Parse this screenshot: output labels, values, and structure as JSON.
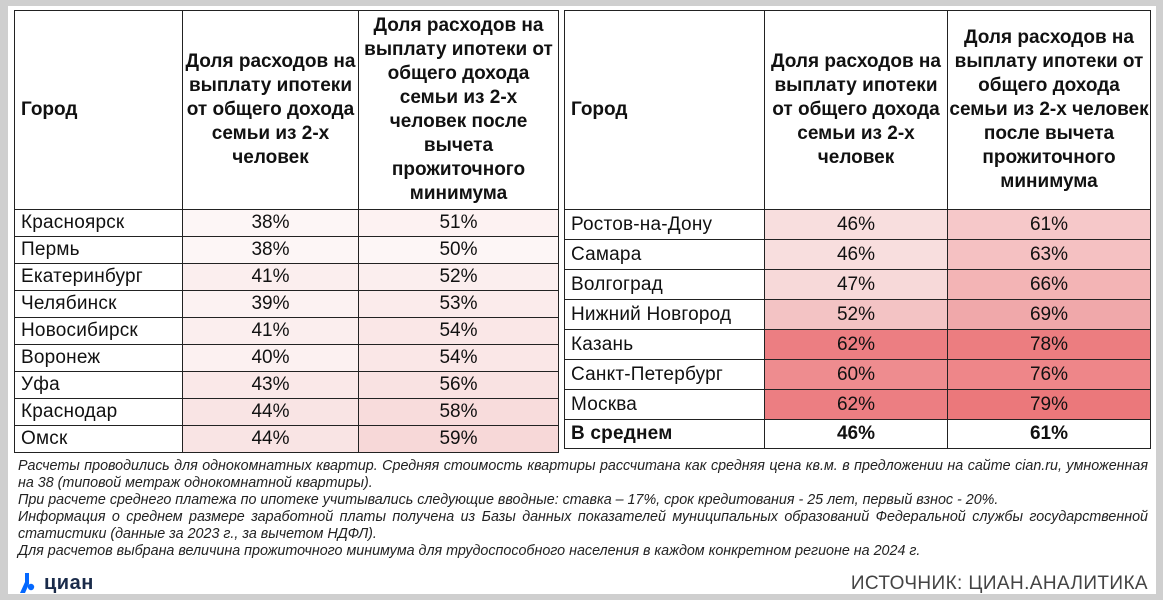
{
  "headers": {
    "city": "Город",
    "share": "Доля расходов на выплату ипотеки от общего дохода семьи из 2-х человек",
    "share_after": "Доля расходов на выплату ипотеки от общего дохода семьи из 2-х человек после вычета прожиточного минимума"
  },
  "left_rows": [
    {
      "city": "Красноярск",
      "share": "38%",
      "share_after": "51%",
      "share_bg": "#fdf6f6",
      "after_bg": "#fdf2f2"
    },
    {
      "city": "Пермь",
      "share": "38%",
      "share_after": "50%",
      "share_bg": "#fdf6f6",
      "after_bg": "#fdf6f6"
    },
    {
      "city": "Екатеринбург",
      "share": "41%",
      "share_after": "52%",
      "share_bg": "#fbeeee",
      "after_bg": "#fbeeee"
    },
    {
      "city": "Челябинск",
      "share": "39%",
      "share_after": "53%",
      "share_bg": "#fcf2f2",
      "after_bg": "#fbebeb"
    },
    {
      "city": "Новосибирск",
      "share": "41%",
      "share_after": "54%",
      "share_bg": "#fbeeee",
      "after_bg": "#fae7e7"
    },
    {
      "city": "Воронеж",
      "share": "40%",
      "share_after": "54%",
      "share_bg": "#fcf1f1",
      "after_bg": "#fae7e7"
    },
    {
      "city": "Уфа",
      "share": "43%",
      "share_after": "56%",
      "share_bg": "#fae8e8",
      "after_bg": "#f9e2e2"
    },
    {
      "city": "Краснодар",
      "share": "44%",
      "share_after": "58%",
      "share_bg": "#f9e4e4",
      "after_bg": "#f8dcdc"
    },
    {
      "city": "Омск",
      "share": "44%",
      "share_after": "59%",
      "share_bg": "#f9e4e4",
      "after_bg": "#f7d8d8"
    }
  ],
  "right_rows": [
    {
      "city": "Ростов-на-Дону",
      "share": "46%",
      "share_after": "61%",
      "share_bg": "#f8dede",
      "after_bg": "#f6c8c9"
    },
    {
      "city": "Самара",
      "share": "46%",
      "share_after": "63%",
      "share_bg": "#f8dede",
      "after_bg": "#f5c1c2"
    },
    {
      "city": "Волгоград",
      "share": "47%",
      "share_after": "66%",
      "share_bg": "#f7d9d9",
      "after_bg": "#f3b4b5"
    },
    {
      "city": "Нижний Новгород",
      "share": "52%",
      "share_after": "69%",
      "share_bg": "#f3c3c4",
      "after_bg": "#f0a8aa"
    },
    {
      "city": "Казань",
      "share": "62%",
      "share_after": "78%",
      "share_bg": "#ec7e82",
      "after_bg": "#ec7d80"
    },
    {
      "city": "Санкт-Петербург",
      "share": "60%",
      "share_after": "76%",
      "share_bg": "#ee8c8f",
      "after_bg": "#ee8689"
    },
    {
      "city": "Москва",
      "share": "62%",
      "share_after": "79%",
      "share_bg": "#ec7e82",
      "after_bg": "#eb787b"
    }
  ],
  "average": {
    "label": "В среднем",
    "share": "46%",
    "share_after": "61%"
  },
  "notes": {
    "line1": "Расчеты проводились для однокомнатных квартир. Средняя стоимость квартиры рассчитана как средняя цена кв.м. в предложении на сайте cian.ru, умноженная на 38 (типовой метраж однокомнатной квартиры).",
    "line2": "При расчете среднего платежа по ипотеке учитывались следующие вводные: ставка – 17%, срок кредитования - 25 лет, первый взнос - 20%.",
    "line3": "Информация о среднем размере заработной платы получена из Базы данных показателей муниципальных образований Федеральной службы государственной статистики (данные за 2023 г., за вычетом НДФЛ).",
    "line4": "Для расчетов выбрана величина прожиточного минимума для трудоспособного населения в каждом конкретном регионе на 2024 г."
  },
  "logo": {
    "text": "циан",
    "color": "#0468ff"
  },
  "source": "ИСТОЧНИК: ЦИАН.АНАЛИТИКА"
}
